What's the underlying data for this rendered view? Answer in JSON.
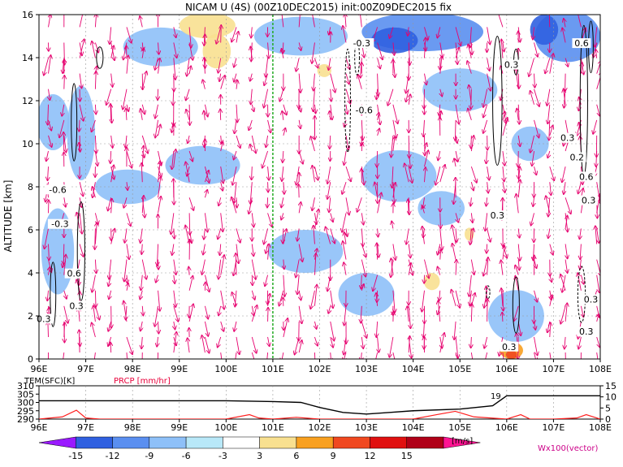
{
  "title": "NICAM U (4S) (00Z10DEC2015) init:00Z09DEC2015 fix",
  "chart_data": {
    "type": "heatmap",
    "main": {
      "ylabel": "ALTITUDE [km]",
      "xlim": [
        96,
        108
      ],
      "ylim": [
        0,
        16
      ],
      "x_ticks": [
        "96E",
        "97E",
        "98E",
        "99E",
        "100E",
        "101E",
        "102E",
        "103E",
        "104E",
        "105E",
        "106E",
        "107E",
        "108E"
      ],
      "y_ticks": [
        "0",
        "2",
        "4",
        "6",
        "8",
        "10",
        "12",
        "14",
        "16"
      ],
      "grid": true,
      "marker_line_x": 101,
      "shaded_blobs": [
        {
          "x": 96.3,
          "y": 11.0,
          "rx": 0.35,
          "ry": 1.3,
          "value": -6
        },
        {
          "x": 96.9,
          "y": 10.5,
          "rx": 0.3,
          "ry": 2.2,
          "value": -6
        },
        {
          "x": 96.4,
          "y": 5.0,
          "rx": 0.35,
          "ry": 2.0,
          "value": -6
        },
        {
          "x": 97.9,
          "y": 8.0,
          "rx": 0.7,
          "ry": 0.8,
          "value": -6
        },
        {
          "x": 99.5,
          "y": 9.0,
          "rx": 0.8,
          "ry": 0.9,
          "value": -6
        },
        {
          "x": 101.7,
          "y": 5.0,
          "rx": 0.8,
          "ry": 1.0,
          "value": -6
        },
        {
          "x": 103.7,
          "y": 8.5,
          "rx": 0.8,
          "ry": 1.2,
          "value": -6
        },
        {
          "x": 104.6,
          "y": 7.0,
          "rx": 0.5,
          "ry": 0.8,
          "value": -6
        },
        {
          "x": 106.5,
          "y": 10.0,
          "rx": 0.4,
          "ry": 0.8,
          "value": -6
        },
        {
          "x": 106.2,
          "y": 2.0,
          "rx": 0.6,
          "ry": 1.2,
          "value": -6
        },
        {
          "x": 103.0,
          "y": 3.0,
          "rx": 0.6,
          "ry": 1.0,
          "value": -6
        },
        {
          "x": 105.0,
          "y": 12.5,
          "rx": 0.8,
          "ry": 1.0,
          "value": -6
        },
        {
          "x": 98.6,
          "y": 14.5,
          "rx": 0.8,
          "ry": 0.9,
          "value": -6
        },
        {
          "x": 101.6,
          "y": 15.0,
          "rx": 1.0,
          "ry": 0.9,
          "value": -6
        },
        {
          "x": 104.2,
          "y": 15.2,
          "rx": 1.3,
          "ry": 0.9,
          "value": -9
        },
        {
          "x": 107.3,
          "y": 15.0,
          "rx": 0.7,
          "ry": 1.2,
          "value": -9
        },
        {
          "x": 103.6,
          "y": 14.8,
          "rx": 0.5,
          "ry": 0.6,
          "value": -12
        },
        {
          "x": 106.8,
          "y": 15.3,
          "rx": 0.3,
          "ry": 0.7,
          "value": -12
        },
        {
          "x": 99.6,
          "y": 15.5,
          "rx": 0.6,
          "ry": 0.6,
          "value": 3
        },
        {
          "x": 99.8,
          "y": 14.3,
          "rx": 0.3,
          "ry": 0.8,
          "value": 3
        },
        {
          "x": 102.1,
          "y": 13.4,
          "rx": 0.15,
          "ry": 0.3,
          "value": 3
        },
        {
          "x": 104.4,
          "y": 3.6,
          "rx": 0.17,
          "ry": 0.4,
          "value": 3
        },
        {
          "x": 105.2,
          "y": 5.8,
          "rx": 0.1,
          "ry": 0.3,
          "value": 3
        },
        {
          "x": 106.1,
          "y": 0.4,
          "rx": 0.25,
          "ry": 0.4,
          "value": 6
        },
        {
          "x": 106.1,
          "y": 0.2,
          "rx": 0.12,
          "ry": 0.2,
          "value": 9
        }
      ],
      "contours": [
        {
          "x": 96.75,
          "y": 11.0,
          "rx": 0.06,
          "ry": 1.8,
          "dashed": false
        },
        {
          "x": 96.9,
          "y": 5.0,
          "rx": 0.08,
          "ry": 2.3,
          "dashed": false
        },
        {
          "x": 96.3,
          "y": 3.0,
          "rx": 0.06,
          "ry": 1.5,
          "dashed": false
        },
        {
          "x": 97.3,
          "y": 14.0,
          "rx": 0.07,
          "ry": 0.5,
          "dashed": false
        },
        {
          "x": 102.6,
          "y": 12.0,
          "rx": 0.06,
          "ry": 2.4,
          "dashed": true
        },
        {
          "x": 102.8,
          "y": 14.0,
          "rx": 0.05,
          "ry": 0.8,
          "dashed": true
        },
        {
          "x": 105.8,
          "y": 12.0,
          "rx": 0.1,
          "ry": 3.0,
          "dashed": false
        },
        {
          "x": 106.2,
          "y": 13.8,
          "rx": 0.05,
          "ry": 0.6,
          "dashed": false
        },
        {
          "x": 106.2,
          "y": 2.5,
          "rx": 0.07,
          "ry": 1.3,
          "dashed": false
        },
        {
          "x": 107.65,
          "y": 12.0,
          "rx": 0.08,
          "ry": 3.5,
          "dashed": false
        },
        {
          "x": 107.8,
          "y": 14.5,
          "rx": 0.05,
          "ry": 1.2,
          "dashed": false
        },
        {
          "x": 107.6,
          "y": 3.0,
          "rx": 0.08,
          "ry": 1.3,
          "dashed": true
        },
        {
          "x": 105.6,
          "y": 3.1,
          "rx": 0.04,
          "ry": 0.3,
          "dashed": true
        }
      ],
      "contour_labels": [
        {
          "x": 102.9,
          "y": 14.6,
          "text": "-0.3"
        },
        {
          "x": 106.1,
          "y": 13.6,
          "text": "0.3"
        },
        {
          "x": 107.6,
          "y": 14.6,
          "text": "0.6"
        },
        {
          "x": 102.95,
          "y": 11.5,
          "text": "-0.6"
        },
        {
          "x": 96.4,
          "y": 7.8,
          "text": "-0.6"
        },
        {
          "x": 96.45,
          "y": 6.2,
          "text": "-0.3"
        },
        {
          "x": 96.75,
          "y": 3.9,
          "text": "0.6"
        },
        {
          "x": 96.8,
          "y": 2.4,
          "text": "0.3"
        },
        {
          "x": 96.1,
          "y": 1.8,
          "text": "0.3"
        },
        {
          "x": 105.8,
          "y": 6.6,
          "text": "0.3"
        },
        {
          "x": 107.7,
          "y": 8.4,
          "text": "0.6"
        },
        {
          "x": 107.75,
          "y": 7.3,
          "text": "0.3"
        },
        {
          "x": 107.7,
          "y": 1.2,
          "text": "0.3"
        },
        {
          "x": 106.05,
          "y": 0.5,
          "text": "0.3"
        },
        {
          "x": 107.3,
          "y": 10.2,
          "text": "0.3"
        },
        {
          "x": 107.5,
          "y": 9.3,
          "text": "0.2"
        },
        {
          "x": 107.8,
          "y": 2.7,
          "text": "0.3"
        }
      ]
    },
    "colorbar": {
      "levels": [
        "-15",
        "-12",
        "-9",
        "-6",
        "-3",
        "3",
        "6",
        "9",
        "12",
        "15"
      ],
      "colors": [
        "#9a1aff",
        "#3060e0",
        "#5a8ff0",
        "#8ec0f8",
        "#b8e8f8",
        "#ffffff",
        "#f8e090",
        "#f8a020",
        "#f04820",
        "#e01010",
        "#b00018",
        "#ff1493"
      ],
      "unit": "[m/s]",
      "vector_label": "Wx100(vector)"
    },
    "lower_panel": {
      "temp_label": "TEM(SFC)[K]",
      "prcp_label": "PRCP [mm/hr]",
      "left_ticks": [
        "310",
        "305",
        "300",
        "295",
        "290"
      ],
      "right_ticks": [
        "15",
        "10",
        "5",
        "0"
      ],
      "x_ticks": [
        "96E",
        "97E",
        "98E",
        "99E",
        "100E",
        "101E",
        "102E",
        "103E",
        "104E",
        "105E",
        "106E",
        "107E",
        "108E"
      ],
      "temperature": {
        "x": [
          96,
          97,
          98,
          99,
          100,
          101,
          101.6,
          102,
          102.5,
          103,
          103.5,
          104,
          105,
          105.7,
          106,
          107,
          108
        ],
        "y": [
          301,
          301,
          301,
          301,
          301,
          300.5,
          300,
          297,
          294,
          293,
          294,
          295,
          296,
          298,
          304,
          304,
          304
        ]
      },
      "precipitation": {
        "x": [
          96,
          96.5,
          96.8,
          97,
          97.3,
          98,
          99,
          100,
          100.5,
          100.7,
          101,
          101.5,
          102,
          103,
          104,
          104.5,
          104.9,
          105.3,
          106,
          106.3,
          106.5,
          107,
          107.5,
          107.7,
          108
        ],
        "y": [
          0,
          1,
          4,
          0.5,
          0,
          0,
          0,
          0,
          2,
          0.5,
          0,
          0.8,
          0,
          0,
          0,
          2,
          3.5,
          1,
          0,
          2,
          0,
          0,
          0.5,
          2,
          0
        ]
      },
      "marker_label": "19"
    }
  }
}
